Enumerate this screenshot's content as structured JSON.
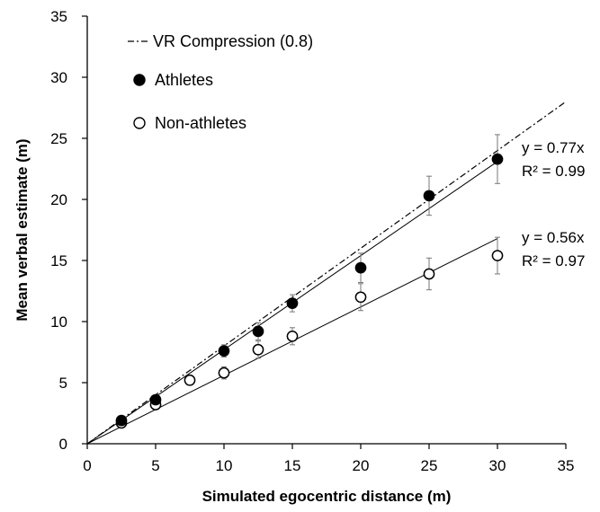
{
  "chart_data": {
    "type": "scatter",
    "xlabel": "Simulated egocentric distance (m)",
    "ylabel": "Mean verbal estimate (m)",
    "xlim": [
      0,
      35
    ],
    "ylim": [
      0,
      35
    ],
    "x_ticks": [
      "0",
      "5",
      "10",
      "15",
      "20",
      "25",
      "30",
      "35"
    ],
    "y_ticks": [
      "0",
      "5",
      "10",
      "15",
      "20",
      "25",
      "30",
      "35"
    ],
    "grid": false,
    "legend_position": "top-left",
    "reference_line": {
      "name": "VR Compression (0.8)",
      "slope": 0.8,
      "style": "dash-dot"
    },
    "series": [
      {
        "name": "Athletes",
        "marker": "filled-circle",
        "x": [
          2.5,
          5,
          10,
          12.5,
          15,
          20,
          25,
          30
        ],
        "y": [
          1.9,
          3.6,
          7.6,
          9.2,
          11.5,
          14.4,
          20.3,
          23.3
        ],
        "error": [
          0.2,
          0.3,
          0.5,
          0.7,
          0.7,
          1.2,
          1.6,
          2.0
        ],
        "fit": {
          "slope": 0.77,
          "equation": "y = 0.77x",
          "r2": "R² = 0.99",
          "x_range": [
            0,
            30
          ]
        }
      },
      {
        "name": "Non-athletes",
        "marker": "open-circle",
        "x": [
          2.5,
          5,
          7.5,
          10,
          12.5,
          15,
          20,
          25,
          30
        ],
        "y": [
          1.7,
          3.2,
          5.2,
          5.8,
          7.7,
          8.8,
          12.0,
          13.9,
          15.4
        ],
        "error": [
          0.2,
          0.3,
          0.4,
          0.5,
          0.7,
          0.7,
          1.1,
          1.3,
          1.5
        ],
        "fit": {
          "slope": 0.56,
          "equation": "y = 0.56x",
          "r2": "R² = 0.97",
          "x_range": [
            0,
            30
          ]
        }
      }
    ]
  }
}
